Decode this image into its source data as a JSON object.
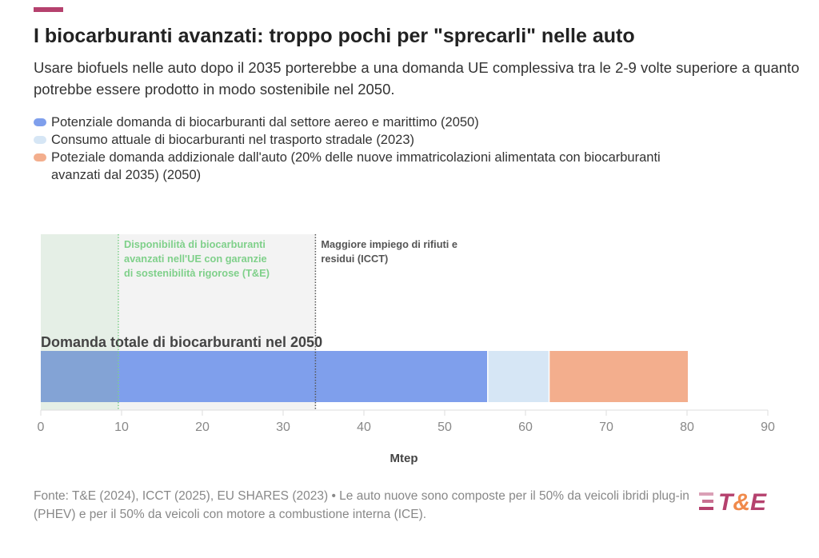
{
  "header": {
    "title": "I biocarburanti avanzati: troppo pochi per \"sprecarli\" nelle auto",
    "subtitle": "Usare biofuels nelle auto dopo il 2035 porterebbe a una domanda UE complessiva tra le 2-9 volte superiore a quanto potrebbe essere prodotto in modo sostenibile nel 2050.",
    "accent_color": "#b5416e"
  },
  "chart_data": {
    "type": "bar",
    "orientation": "horizontal",
    "stacked": true,
    "categories": [
      "Domanda totale di biocarburanti nel 2050"
    ],
    "series": [
      {
        "name": "Potenziale domanda di biocarburanti dal settore aereo e marittimo (2050)",
        "values": [
          55.4
        ],
        "color": "#7f9fec"
      },
      {
        "name": "Consumo attuale di biocarburanti nel trasporto stradale (2023)",
        "values": [
          7.6
        ],
        "color": "#d6e6f5"
      },
      {
        "name": "Poteziale domanda addizionale dall'auto (20% delle nuove immatricolazioni alimentata con biocarburanti avanzati dal 2035) (2050)",
        "values": [
          17.1
        ],
        "color": "#f3ae8d"
      }
    ],
    "xlabel": "Mtep",
    "xlim": [
      0,
      90
    ],
    "xticks": [
      0,
      10,
      20,
      30,
      40,
      50,
      60,
      70,
      80,
      90
    ],
    "legend": "top",
    "annotations": [
      {
        "x": 9.6,
        "label": "Disponibilità di biocarburanti avanzati nell'UE con garanzie di sostenibilità rigorose (T&E)",
        "color": "#7fd08a"
      },
      {
        "x": 34,
        "label": "Maggiore impiego di rifiuti e residui (ICCT)",
        "color": "#555555"
      }
    ]
  },
  "footer": {
    "source": "Fonte: T&E (2024), ICCT (2025), EU SHARES (2023) • Le auto nuove sono composte per il 50% da veicoli ibridi plug-in (PHEV) e per il 50% da veicoli con motore a combustione interna (ICE).",
    "logo": "T&E"
  }
}
